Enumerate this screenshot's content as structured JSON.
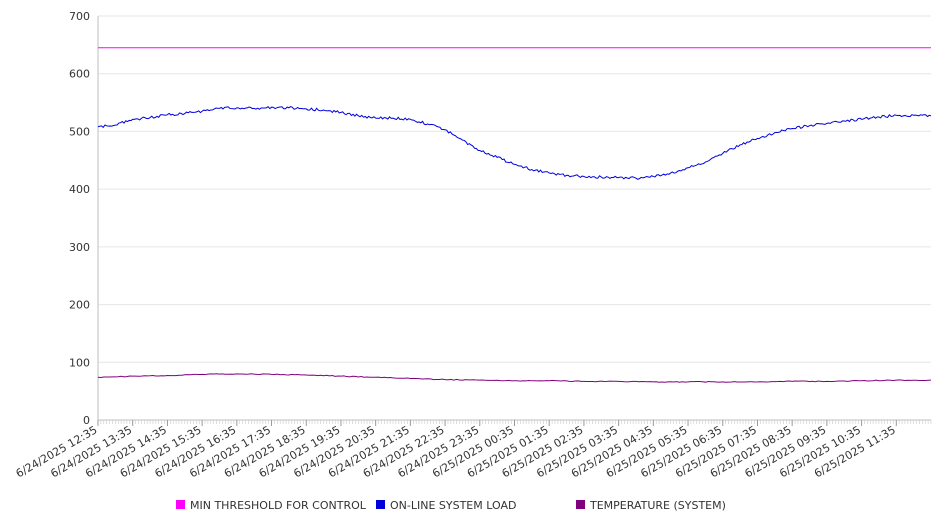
{
  "chart_data": {
    "type": "line",
    "ylim": [
      0,
      700
    ],
    "yticks": [
      0,
      100,
      200,
      300,
      400,
      500,
      600,
      700
    ],
    "x_ticks": [
      "6/24/2025 12:35",
      "6/24/2025 13:35",
      "6/24/2025 14:35",
      "6/24/2025 15:35",
      "6/24/2025 16:35",
      "6/24/2025 17:35",
      "6/24/2025 18:35",
      "6/24/2025 19:35",
      "6/24/2025 20:35",
      "6/24/2025 21:35",
      "6/24/2025 22:35",
      "6/24/2025 23:35",
      "6/25/2025 00:35",
      "6/25/2025 01:35",
      "6/25/2025 02:35",
      "6/25/2025 03:35",
      "6/25/2025 04:35",
      "6/25/2025 05:35",
      "6/25/2025 06:35",
      "6/25/2025 07:35",
      "6/25/2025 08:35",
      "6/25/2025 09:35",
      "6/25/2025 10:35",
      "6/25/2025 11:35"
    ],
    "x_time_range": [
      "6/24/2025 12:35",
      "6/25/2025 12:35"
    ],
    "grid": "horizontal",
    "legend_position": "bottom",
    "series": [
      {
        "name": "MIN THRESHOLD FOR CONTROL",
        "color": "#ff00ff",
        "points": [
          [
            "6/24/2025 12:35",
            645
          ],
          [
            "6/25/2025 12:35",
            645
          ]
        ]
      },
      {
        "name": "ON-LINE SYSTEM LOAD",
        "color": "#0000dd",
        "points": [
          [
            "6/24/2025 12:35",
            508
          ],
          [
            "6/24/2025 13:05",
            511
          ],
          [
            "6/24/2025 13:35",
            521
          ],
          [
            "6/24/2025 14:05",
            524
          ],
          [
            "6/24/2025 14:35",
            529
          ],
          [
            "6/24/2025 15:05",
            531
          ],
          [
            "6/24/2025 15:35",
            535
          ],
          [
            "6/24/2025 16:05",
            540
          ],
          [
            "6/24/2025 16:35",
            541
          ],
          [
            "6/24/2025 17:05",
            540
          ],
          [
            "6/24/2025 17:35",
            542
          ],
          [
            "6/24/2025 18:05",
            541
          ],
          [
            "6/24/2025 18:35",
            539
          ],
          [
            "6/24/2025 19:05",
            537
          ],
          [
            "6/24/2025 19:35",
            533
          ],
          [
            "6/24/2025 20:05",
            527
          ],
          [
            "6/24/2025 20:35",
            523
          ],
          [
            "6/24/2025 21:05",
            523
          ],
          [
            "6/24/2025 21:35",
            521
          ],
          [
            "6/24/2025 22:05",
            513
          ],
          [
            "6/24/2025 22:35",
            503
          ],
          [
            "6/24/2025 23:05",
            485
          ],
          [
            "6/24/2025 23:35",
            467
          ],
          [
            "6/25/2025 00:05",
            455
          ],
          [
            "6/25/2025 00:35",
            443
          ],
          [
            "6/25/2025 01:05",
            434
          ],
          [
            "6/25/2025 01:35",
            428
          ],
          [
            "6/25/2025 02:05",
            424
          ],
          [
            "6/25/2025 02:35",
            422
          ],
          [
            "6/25/2025 03:05",
            421
          ],
          [
            "6/25/2025 03:35",
            420
          ],
          [
            "6/25/2025 04:05",
            419
          ],
          [
            "6/25/2025 04:35",
            422
          ],
          [
            "6/25/2025 05:05",
            428
          ],
          [
            "6/25/2025 05:35",
            437
          ],
          [
            "6/25/2025 06:05",
            447
          ],
          [
            "6/25/2025 06:35",
            462
          ],
          [
            "6/25/2025 07:05",
            477
          ],
          [
            "6/25/2025 07:35",
            488
          ],
          [
            "6/25/2025 08:05",
            498
          ],
          [
            "6/25/2025 08:35",
            505
          ],
          [
            "6/25/2025 09:05",
            510
          ],
          [
            "6/25/2025 09:35",
            514
          ],
          [
            "6/25/2025 10:05",
            518
          ],
          [
            "6/25/2025 10:35",
            521
          ],
          [
            "6/25/2025 11:05",
            525
          ],
          [
            "6/25/2025 11:35",
            528
          ],
          [
            "6/25/2025 12:05",
            528
          ],
          [
            "6/25/2025 12:35",
            527
          ]
        ]
      },
      {
        "name": "TEMPERATURE (SYSTEM)",
        "color": "#800080",
        "points": [
          [
            "6/24/2025 12:35",
            74
          ],
          [
            "6/24/2025 13:35",
            76
          ],
          [
            "6/24/2025 14:35",
            77
          ],
          [
            "6/24/2025 15:35",
            79
          ],
          [
            "6/24/2025 16:35",
            80
          ],
          [
            "6/24/2025 17:35",
            79
          ],
          [
            "6/24/2025 18:35",
            78
          ],
          [
            "6/24/2025 19:35",
            76
          ],
          [
            "6/24/2025 20:35",
            74
          ],
          [
            "6/24/2025 21:35",
            72
          ],
          [
            "6/24/2025 22:35",
            70
          ],
          [
            "6/24/2025 23:35",
            69
          ],
          [
            "6/25/2025 00:35",
            68
          ],
          [
            "6/25/2025 01:35",
            68
          ],
          [
            "6/25/2025 02:35",
            67
          ],
          [
            "6/25/2025 03:35",
            67
          ],
          [
            "6/25/2025 04:35",
            66
          ],
          [
            "6/25/2025 05:35",
            66
          ],
          [
            "6/25/2025 06:35",
            66
          ],
          [
            "6/25/2025 07:35",
            66
          ],
          [
            "6/25/2025 08:35",
            67
          ],
          [
            "6/25/2025 09:35",
            67
          ],
          [
            "6/25/2025 10:35",
            68
          ],
          [
            "6/25/2025 11:35",
            69
          ],
          [
            "6/25/2025 12:35",
            69
          ]
        ]
      }
    ]
  }
}
